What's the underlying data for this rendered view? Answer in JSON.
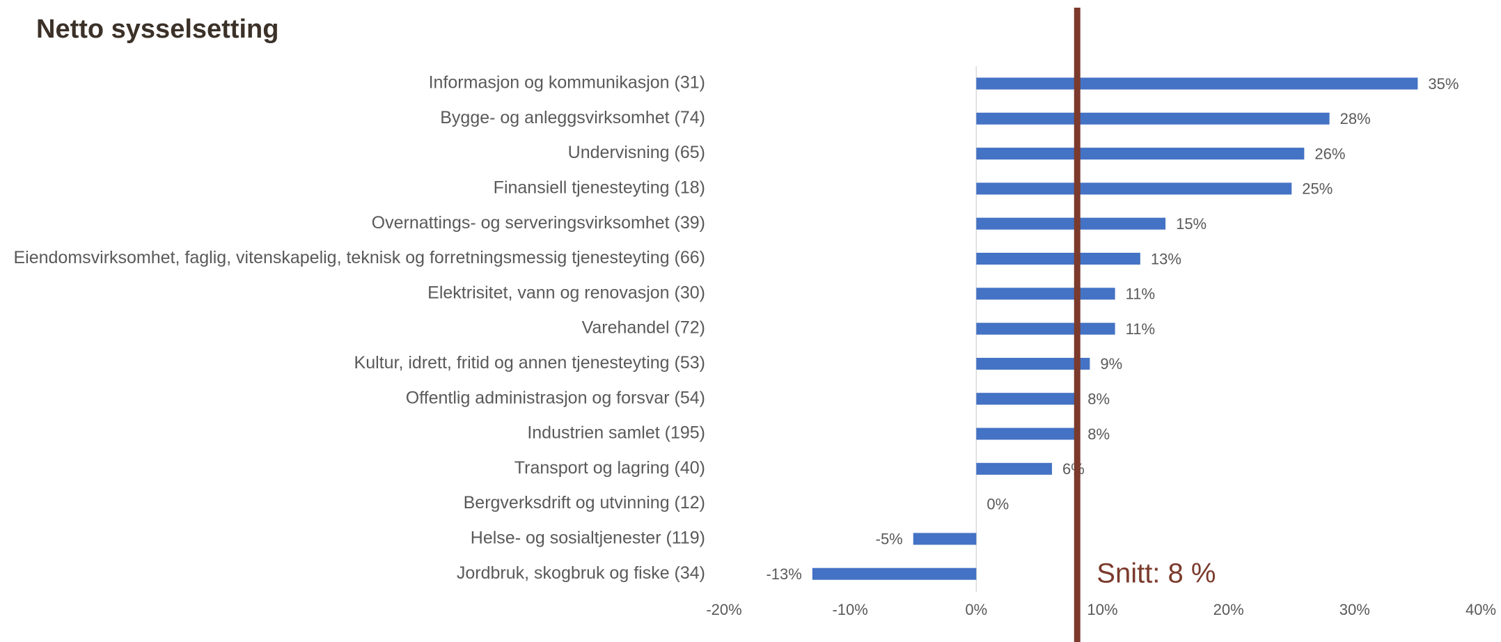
{
  "chart_data": {
    "type": "bar",
    "orientation": "horizontal",
    "title": "Netto sysselsetting",
    "categories": [
      "Informasjon og kommunikasjon (31)",
      "Bygge- og anleggsvirksomhet (74)",
      "Undervisning (65)",
      "Finansiell tjenesteyting (18)",
      "Overnattings- og serveringsvirksomhet (39)",
      "Eiendomsvirksomhet, faglig, vitenskapelig, teknisk og forretningsmessig tjenesteyting (66)",
      "Elektrisitet, vann og renovasjon (30)",
      "Varehandel (72)",
      "Kultur, idrett, fritid og annen tjenesteyting (53)",
      "Offentlig administrasjon og forsvar (54)",
      "Industrien samlet (195)",
      "Transport og lagring (40)",
      "Bergverksdrift og utvinning (12)",
      "Helse- og sosialtjenester (119)",
      "Jordbruk, skogbruk og fiske (34)"
    ],
    "values": [
      35,
      28,
      26,
      25,
      15,
      13,
      11,
      11,
      9,
      8,
      8,
      6,
      0,
      -5,
      -13
    ],
    "value_labels": [
      "35%",
      "28%",
      "26%",
      "25%",
      "15%",
      "13%",
      "11%",
      "11%",
      "9%",
      "8%",
      "8%",
      "6%",
      "0%",
      "-5%",
      "-13%"
    ],
    "color": "#4472c4",
    "xlim": [
      -20,
      40
    ],
    "xticks": [
      {
        "value": -20,
        "label": "-20%"
      },
      {
        "value": -10,
        "label": "-10%"
      },
      {
        "value": 0,
        "label": "0%"
      },
      {
        "value": 10,
        "label": "10%"
      },
      {
        "value": 20,
        "label": "20%"
      },
      {
        "value": 30,
        "label": "30%"
      },
      {
        "value": 40,
        "label": "40%"
      }
    ],
    "average_line": {
      "value": 8,
      "label": "Snitt: 8 %",
      "color": "#7b3a2c"
    }
  }
}
